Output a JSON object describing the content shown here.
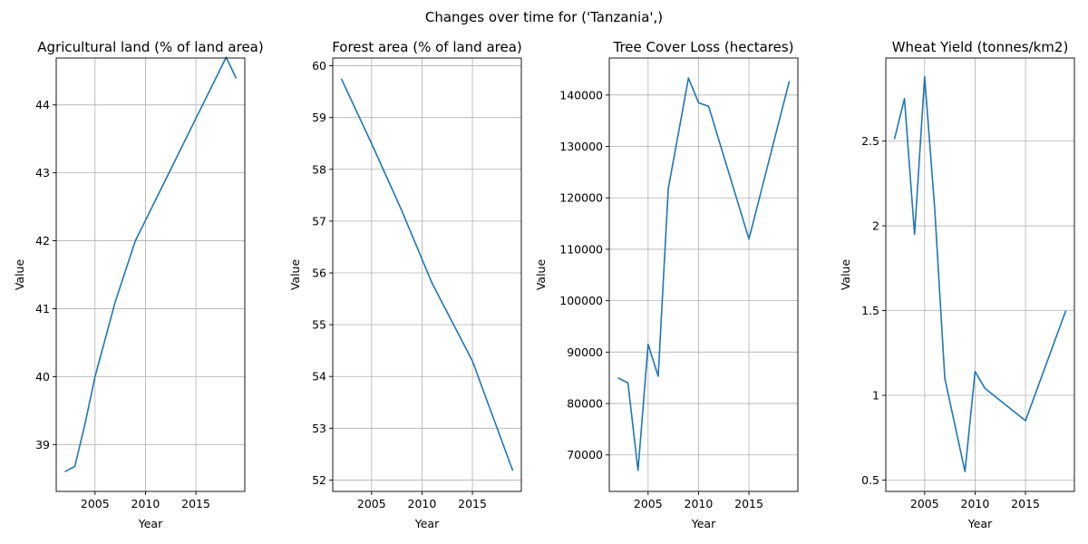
{
  "suptitle": "Changes over time for ('Tanzania',)",
  "colors": {
    "line": "#1f77b4",
    "grid": "#b0b0b0",
    "axes": "#000000"
  },
  "chart_data": [
    {
      "type": "line",
      "title": "Agricultural land (% of land area)",
      "xlabel": "Year",
      "ylabel": "Value",
      "xlim": [
        2001.15,
        2019.85
      ],
      "ylim": [
        38.31,
        44.69
      ],
      "xticks": [
        2005,
        2010,
        2015
      ],
      "yticks": [
        39,
        40,
        41,
        42,
        43,
        44
      ],
      "grid": true,
      "series": [
        {
          "x": [
            2002,
            2003,
            2004,
            2005,
            2006,
            2007,
            2008,
            2009,
            2010,
            2011,
            2012,
            2013,
            2014,
            2015,
            2016,
            2017,
            2018,
            2019
          ],
          "y": [
            38.6,
            38.68,
            39.3,
            40.0,
            40.55,
            41.1,
            41.55,
            42.0,
            42.3,
            42.6,
            42.9,
            43.2,
            43.5,
            43.8,
            44.1,
            44.4,
            44.7,
            44.39
          ]
        }
      ]
    },
    {
      "type": "line",
      "title": "Forest area (% of land area)",
      "xlabel": "Year",
      "ylabel": "Value",
      "xlim": [
        2001.15,
        2019.85
      ],
      "ylim": [
        51.78,
        60.15
      ],
      "xticks": [
        2005,
        2010,
        2015
      ],
      "yticks": [
        52,
        53,
        54,
        55,
        56,
        57,
        58,
        59,
        60
      ],
      "grid": true,
      "series": [
        {
          "x": [
            2002,
            2005,
            2008,
            2011,
            2015,
            2019
          ],
          "y": [
            59.75,
            58.5,
            57.2,
            55.8,
            54.3,
            52.18
          ]
        }
      ]
    },
    {
      "type": "line",
      "title": "Tree Cover Loss (hectares)",
      "xlabel": "Year",
      "ylabel": "Value",
      "xlim": [
        2001.15,
        2019.85
      ],
      "ylim": [
        62900,
        147200
      ],
      "xticks": [
        2005,
        2010,
        2015
      ],
      "yticks": [
        70000,
        80000,
        90000,
        100000,
        110000,
        120000,
        130000,
        140000
      ],
      "grid": true,
      "series": [
        {
          "x": [
            2002,
            2003,
            2004,
            2005,
            2006,
            2007,
            2008,
            2009,
            2010,
            2011,
            2015,
            2019
          ],
          "y": [
            85000,
            84000,
            67000,
            91500,
            85300,
            121800,
            132500,
            143300,
            138500,
            137800,
            112000,
            142700
          ]
        }
      ]
    },
    {
      "type": "line",
      "title": "Wheat Yield (tonnes/km2)",
      "xlabel": "Year",
      "ylabel": "Value",
      "xlim": [
        2001.15,
        2019.85
      ],
      "ylim": [
        0.433,
        2.99
      ],
      "xticks": [
        2005,
        2010,
        2015
      ],
      "yticks": [
        0.5,
        1.0,
        1.5,
        2.0,
        2.5
      ],
      "grid": true,
      "series": [
        {
          "x": [
            2002,
            2003,
            2004,
            2005,
            2006,
            2007,
            2009,
            2010,
            2011,
            2015,
            2019
          ],
          "y": [
            2.51,
            2.75,
            1.95,
            2.88,
            2.1,
            1.1,
            0.55,
            1.14,
            1.04,
            0.85,
            1.5
          ]
        }
      ]
    }
  ]
}
